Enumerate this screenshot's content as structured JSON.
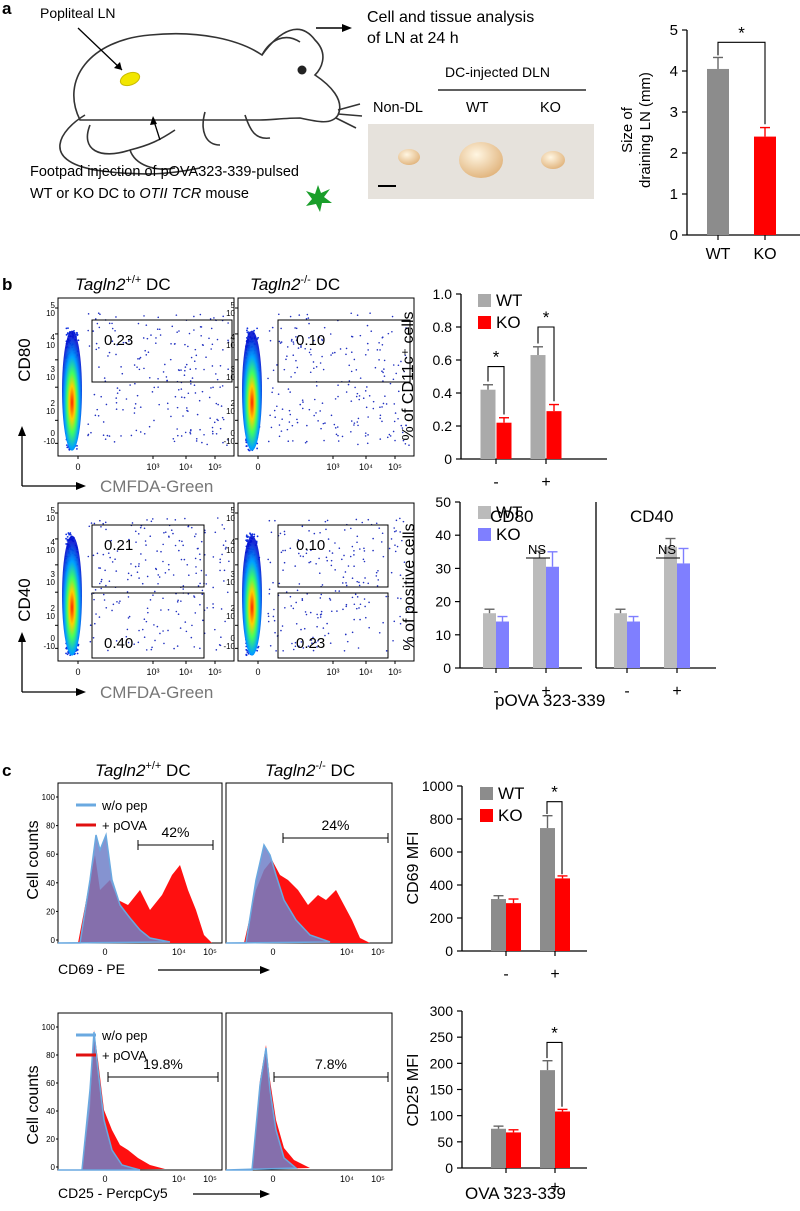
{
  "panel_a": {
    "label": "a",
    "popliteal_label": "Popliteal LN",
    "injection_line1": "Footpad injection of pOVA323-339-pulsed",
    "injection_line2_prefix": "WT or KO DC to ",
    "injection_line2_italic": "OTII TCR",
    "injection_line2_suffix": " mouse",
    "analysis_line1": "Cell and tissue analysis",
    "analysis_line2": "of LN at 24 h",
    "dc_injected_label": "DC-injected DLN",
    "photo_labels": [
      "Non-DL",
      "WT",
      "KO"
    ],
    "colors": {
      "ln_yellow": "#f2e600",
      "dc_star": "#1a9e2a",
      "photo_bg": "#e6e2dc",
      "node": "#e8c79a"
    }
  },
  "panel_b": {
    "label": "b",
    "wt_title_prefix": "Tagln2",
    "wt_title_sup": "+/+",
    "ko_title_sup": "-/-",
    "title_suffix": " DC",
    "cd80_ylabel": "CD80",
    "cd40_ylabel": "CD40",
    "xlabel": "CMFDA-Green",
    "cd80_gates": [
      "0.23",
      "0.10"
    ],
    "cd40_gates_upper": [
      "0.21",
      "0.10"
    ],
    "cd40_gates_lower": [
      "0.40",
      "0.23"
    ],
    "flow_ticks_y": [
      "5",
      "10",
      "4",
      "10",
      "3",
      "10",
      "2",
      "10",
      "0",
      "-10"
    ],
    "flow_ticks_x": [
      "0",
      "10³",
      "10⁴",
      "10⁵"
    ],
    "cd80_title": "CD80",
    "cd40_title": "CD40",
    "ns": "NS",
    "pova_label": "pOVA 323-339"
  },
  "panel_c": {
    "label": "c",
    "legend_wopep": "w/o pep",
    "legend_pova": "+ pOVA",
    "cd69_gates": [
      "42%",
      "24%"
    ],
    "cd25_gates": [
      "19.8%",
      "7.8%"
    ],
    "cell_counts": "Cell counts",
    "cd69_x": "CD69 - PE",
    "cd25_x": "CD25 - PercpCy5",
    "hist_yticks": [
      "100",
      "80",
      "60",
      "40",
      "20",
      "0"
    ],
    "hist_xticks": [
      "0",
      "10⁴",
      "10⁵"
    ],
    "ova_label": "OVA 323-339"
  },
  "chart_data": [
    {
      "type": "bar",
      "title": "",
      "ylabel": "Size of draining LN (mm)",
      "categories": [
        "WT",
        "KO"
      ],
      "values": [
        4.05,
        2.4
      ],
      "errors": [
        0.28,
        0.22
      ],
      "colors": [
        "#8c8c8c",
        "#ff0000"
      ],
      "ylim": [
        0,
        5
      ],
      "yticks": [
        "0",
        "1",
        "2",
        "3",
        "4",
        "5"
      ],
      "significance": "*"
    },
    {
      "type": "bar",
      "ylabel": "% of CD11c⁺ cells",
      "categories": [
        "-",
        "+"
      ],
      "series": [
        {
          "name": "WT",
          "color": "#aaaaaa",
          "values": [
            0.42,
            0.63
          ],
          "errors": [
            0.03,
            0.05
          ]
        },
        {
          "name": "KO",
          "color": "#ff0000",
          "values": [
            0.22,
            0.29
          ],
          "errors": [
            0.03,
            0.04
          ]
        }
      ],
      "ylim": [
        0,
        1.0
      ],
      "yticks": [
        "0",
        "0.2",
        "0.4",
        "0.6",
        "0.8",
        "1.0"
      ],
      "significance": [
        "*",
        "*"
      ]
    },
    {
      "type": "bar",
      "title": "CD80",
      "ylabel": "% of positive cells",
      "categories": [
        "-",
        "+"
      ],
      "series": [
        {
          "name": "WT",
          "color": "#bbbbbb",
          "values": [
            16.5,
            33
          ],
          "errors": [
            1.2,
            2.2
          ]
        },
        {
          "name": "KO",
          "color": "#7f7fff",
          "values": [
            14,
            30.5
          ],
          "errors": [
            1.5,
            4.5
          ]
        }
      ],
      "ylim": [
        0,
        50
      ],
      "yticks": [
        "0",
        "10",
        "20",
        "30",
        "40",
        "50"
      ]
    },
    {
      "type": "bar",
      "title": "CD40",
      "categories": [
        "-",
        "+"
      ],
      "series": [
        {
          "name": "WT",
          "color": "#bbbbbb",
          "values": [
            16.5,
            36.5
          ],
          "errors": [
            1.2,
            2.5
          ]
        },
        {
          "name": "KO",
          "color": "#7f7fff",
          "values": [
            14,
            31.5
          ],
          "errors": [
            1.5,
            4.5
          ]
        }
      ],
      "ylim": [
        0,
        50
      ]
    },
    {
      "type": "bar",
      "ylabel": "CD69 MFI",
      "categories": [
        "-",
        "+"
      ],
      "series": [
        {
          "name": "WT",
          "color": "#8c8c8c",
          "values": [
            315,
            745
          ],
          "errors": [
            20,
            75
          ]
        },
        {
          "name": "KO",
          "color": "#ff0000",
          "values": [
            290,
            440
          ],
          "errors": [
            25,
            15
          ]
        }
      ],
      "ylim": [
        0,
        1000
      ],
      "yticks": [
        "0",
        "200",
        "400",
        "600",
        "800",
        "1000"
      ],
      "significance": "*"
    },
    {
      "type": "bar",
      "ylabel": "CD25 MFI",
      "categories": [
        "-",
        "+"
      ],
      "series": [
        {
          "name": "WT",
          "color": "#8c8c8c",
          "values": [
            75,
            187
          ],
          "errors": [
            5,
            18
          ]
        },
        {
          "name": "KO",
          "color": "#ff0000",
          "values": [
            68,
            108
          ],
          "errors": [
            5,
            4
          ]
        }
      ],
      "ylim": [
        0,
        300
      ],
      "yticks": [
        "0",
        "50",
        "100",
        "150",
        "200",
        "250",
        "300"
      ],
      "significance": "*"
    }
  ]
}
